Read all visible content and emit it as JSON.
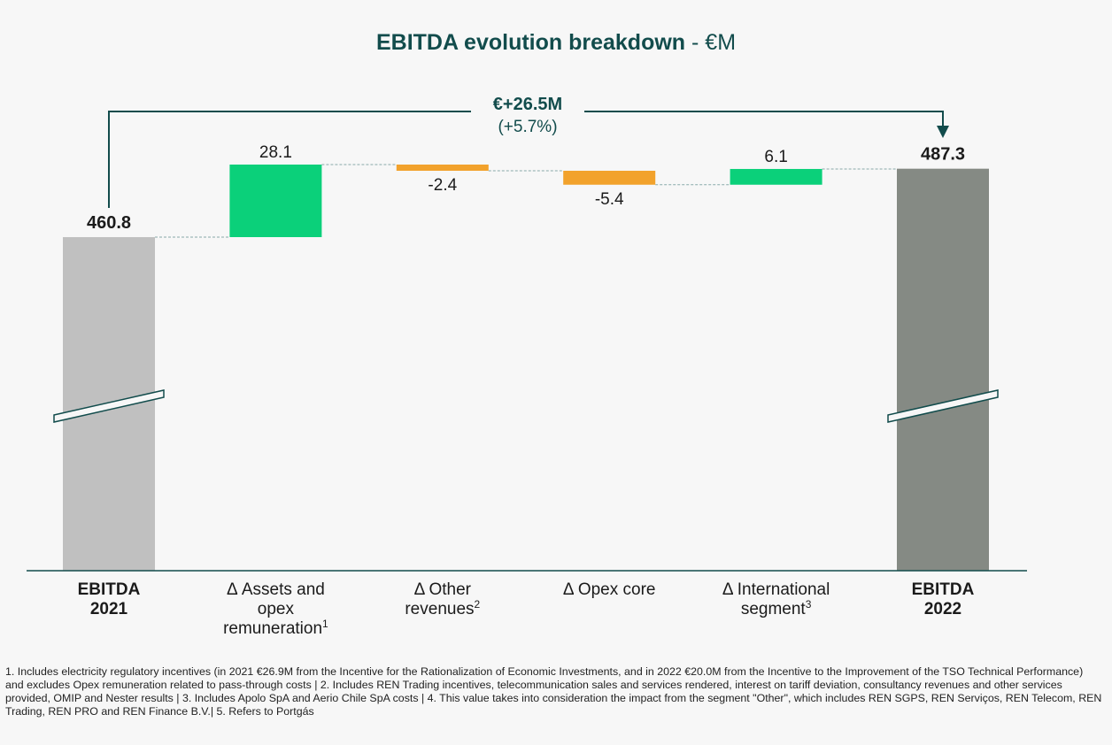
{
  "chart_data": {
    "type": "waterfall",
    "title": "EBITDA evolution breakdown",
    "title_suffix": "- €M",
    "categories": [
      [
        "EBITDA",
        "2021"
      ],
      [
        "Δ Assets and",
        "opex",
        "remuneration"
      ],
      [
        "Δ Other",
        "revenues"
      ],
      [
        "Δ Opex core"
      ],
      [
        "Δ International",
        "segment"
      ],
      [
        "EBITDA",
        "2022"
      ]
    ],
    "superscripts": [
      null,
      "1",
      "2",
      null,
      "3",
      null
    ],
    "values": [
      460.8,
      28.1,
      -2.4,
      -5.4,
      6.1,
      487.3
    ],
    "bar_types": [
      "total",
      "delta",
      "delta",
      "delta",
      "delta",
      "total"
    ],
    "colors": [
      "#c0c0c0",
      "#0bd07a",
      "#f2a22c",
      "#f2a22c",
      "#0bd07a",
      "#858a84"
    ],
    "annotation": {
      "text": "€+26.5M",
      "subtext": "(+5.7%)"
    },
    "footnote": "1. Includes electricity regulatory incentives (in 2021 €26.9M from the Incentive for the Rationalization of Economic Investments, and in 2022 €20.0M from the Incentive to the Improvement of the TSO Technical Performance) and excludes Opex remuneration related to pass-through costs | 2. Includes REN Trading incentives, telecommunication sales and services rendered, interest on tariff deviation, consultancy revenues and other services provided, OMIP and Nester results | 3. Includes Apolo SpA and Aerio Chile SpA costs | 4. This value takes into consideration the impact from the segment \"Other\", which includes REN SGPS, REN Serviços, REN Telecom, REN Trading, REN PRO and REN Finance B.V.| 5. Refers to Portgás"
  }
}
